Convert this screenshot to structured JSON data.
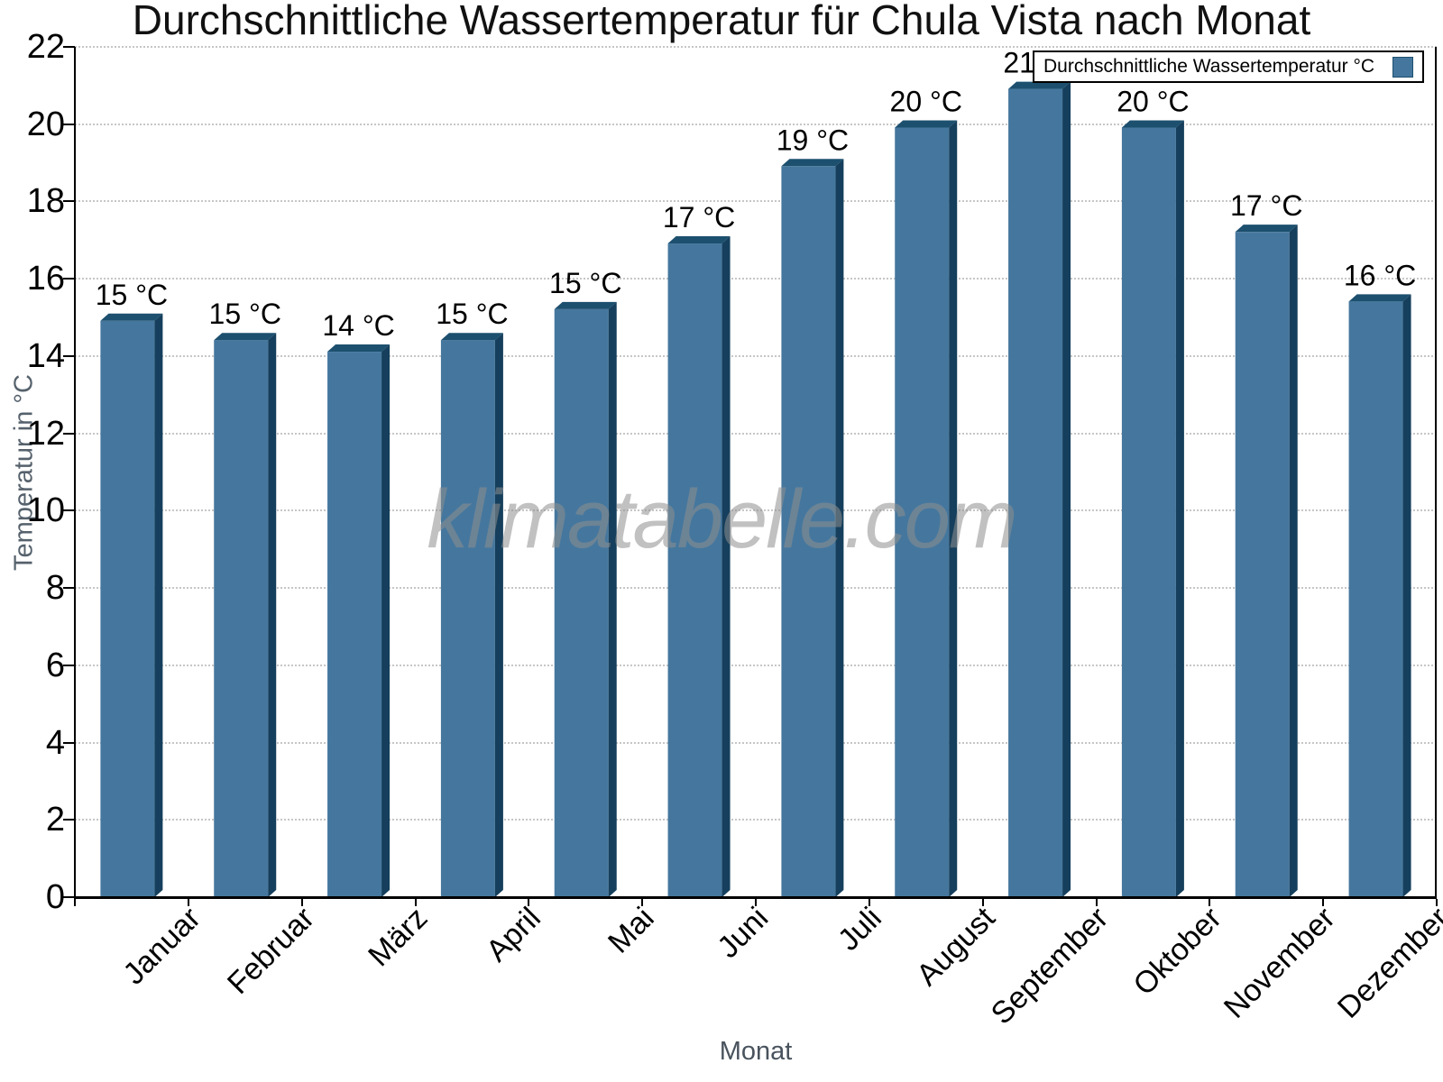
{
  "title": "Durchschnittliche Wassertemperatur für Chula Vista nach Monat",
  "watermark": "klimatabelle.com",
  "legend": {
    "position": "top-right"
  },
  "chart_data": {
    "type": "bar",
    "title": "Durchschnittliche Wassertemperatur für Chula Vista nach Monat",
    "xlabel": "Monat",
    "ylabel": "Temperatur in °C",
    "categories": [
      "Januar",
      "Februar",
      "März",
      "April",
      "Mai",
      "Juni",
      "Juli",
      "August",
      "September",
      "Oktober",
      "November",
      "Dezember"
    ],
    "series": [
      {
        "name": "Durchschnittliche Wassertemperatur °C",
        "values": [
          15.1,
          14.6,
          14.3,
          14.6,
          15.4,
          17.1,
          19.1,
          20.1,
          21.1,
          20.1,
          17.4,
          15.6
        ],
        "bar_labels": [
          "15 °C",
          "15 °C",
          "14 °C",
          "15 °C",
          "15 °C",
          "17 °C",
          "19 °C",
          "20 °C",
          "21 °C",
          "20 °C",
          "17 °C",
          "16 °C"
        ]
      }
    ],
    "ylim": [
      0,
      22
    ],
    "yticks": [
      0,
      2,
      4,
      6,
      8,
      10,
      12,
      14,
      16,
      18,
      20,
      22
    ],
    "grid": "horizontal-dotted",
    "legend_position": "top-right",
    "bar_style": "3d-column",
    "colors": {
      "bar_front": "#45779e",
      "bar_top": "#1d506f",
      "bar_side": "#153f5c",
      "grid": "#c6c6c6",
      "axis": "#000000",
      "axis_title": "#55616c",
      "watermark": "#8f8f8f",
      "background": "#ffffff"
    }
  }
}
